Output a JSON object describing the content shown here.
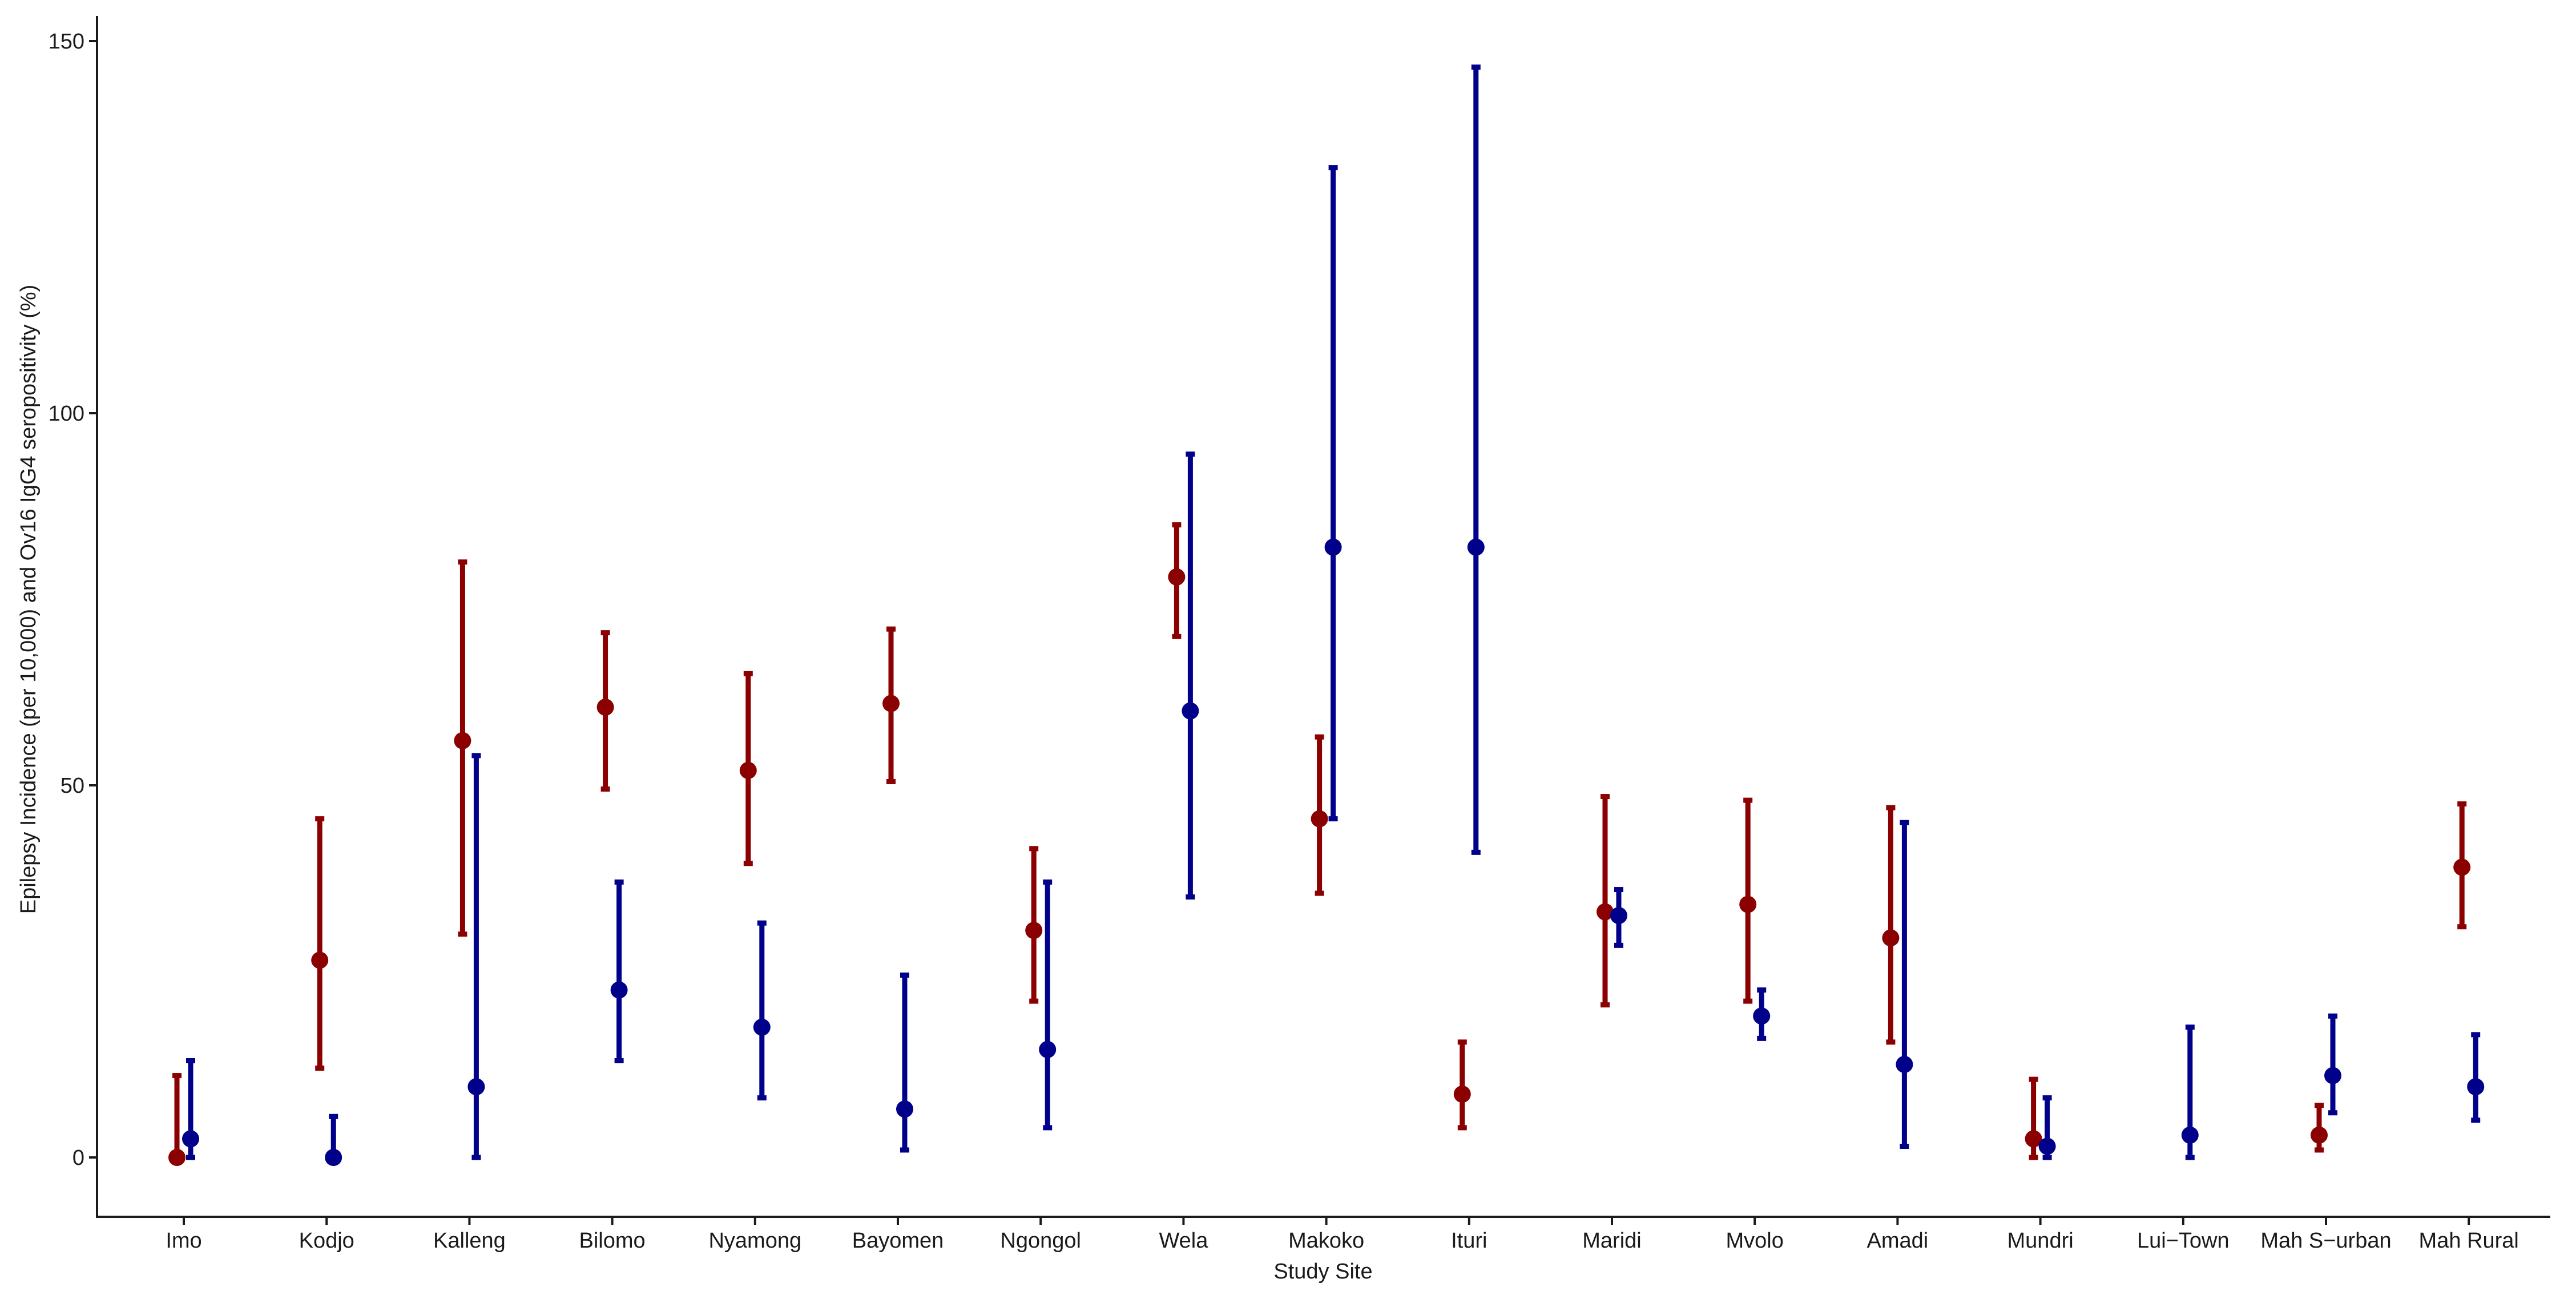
{
  "chart_data": {
    "type": "scatter",
    "title": "",
    "xlabel": "Study Site",
    "ylabel": "Epilepsy Incidence (per 10,000) and Ov16 IgG4 seropositivity (%)",
    "ylim": [
      -7.5,
      152
    ],
    "yticks": [
      0,
      50,
      100,
      150
    ],
    "grid": false,
    "categories": [
      "Imo",
      "Kodjo",
      "Kalleng",
      "Bilomo",
      "Nyamong",
      "Bayomen",
      "Ngongol",
      "Wela",
      "Makoko",
      "Ituri",
      "Maridi",
      "Mvolo",
      "Amadi",
      "Mundri",
      "Lui−Town",
      "Mah S−urban",
      "Mah Rural"
    ],
    "series": [
      {
        "name": "Epilepsy incidence",
        "color": "#8B0000",
        "values": [
          0,
          26.5,
          56,
          60.5,
          52,
          61,
          30.5,
          78,
          45.5,
          8.5,
          33,
          34,
          29.5,
          2.5,
          null,
          3,
          39
        ],
        "lower": [
          0,
          12,
          30,
          49.5,
          39.5,
          50.5,
          21,
          70,
          35.5,
          4,
          20.5,
          21,
          15.5,
          0,
          null,
          1,
          31
        ],
        "upper": [
          11,
          45.5,
          80,
          70.5,
          65,
          71,
          41.5,
          85,
          56.5,
          15.5,
          48.5,
          48,
          47,
          10.5,
          null,
          7,
          47.5
        ]
      },
      {
        "name": "Ov16 IgG4 seropositivity",
        "color": "#00008B",
        "values": [
          2.5,
          0,
          9.5,
          22.5,
          17.5,
          6.5,
          14.5,
          60,
          82,
          82,
          32.5,
          19,
          12.5,
          1.5,
          3,
          11,
          9.5
        ],
        "lower": [
          0,
          0,
          0,
          13,
          8,
          1,
          4,
          35,
          45.5,
          41,
          28.5,
          16,
          1.5,
          0,
          0,
          6,
          5
        ],
        "upper": [
          13,
          5.5,
          54,
          37,
          31.5,
          24.5,
          37,
          94.5,
          133,
          146.5,
          36,
          22.5,
          45,
          8,
          17.5,
          19,
          16.5
        ]
      }
    ]
  }
}
